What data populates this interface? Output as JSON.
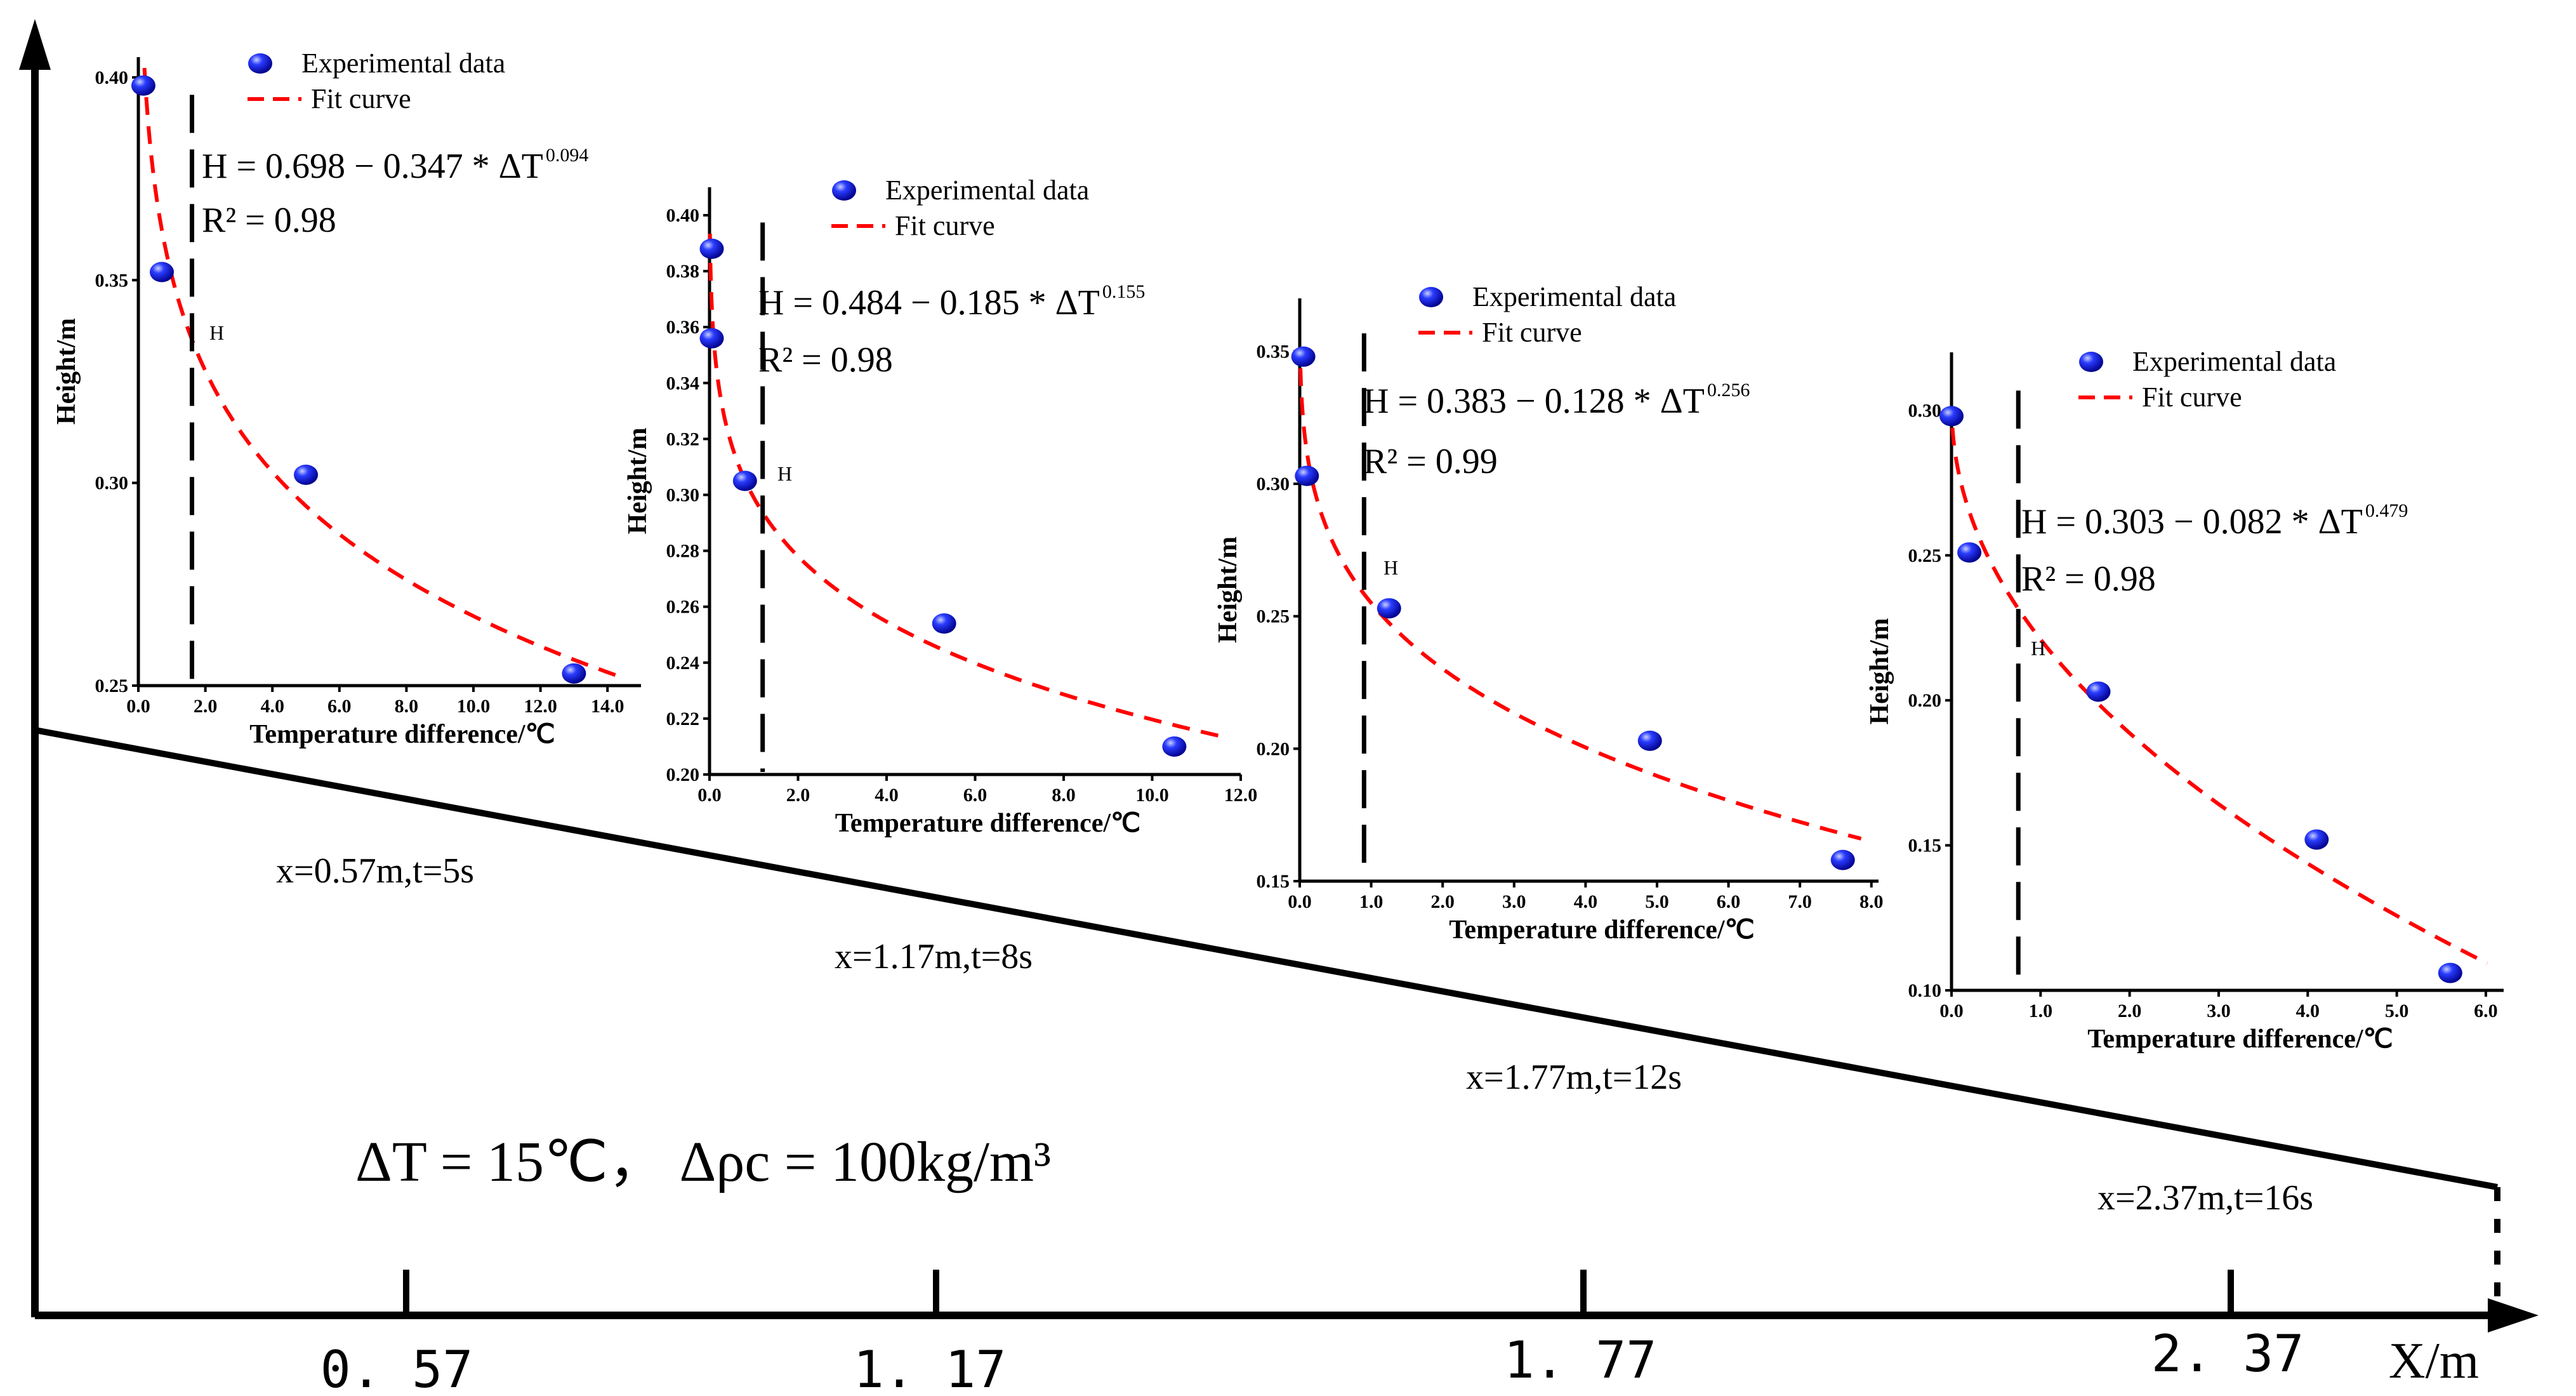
{
  "global_conditions": {
    "text": "ΔT = 15℃， Δρc = 100kg/m³"
  },
  "main_axis": {
    "label": "X/m",
    "ticks": [
      "0. 57",
      "1. 17",
      "1. 77",
      "2. 37"
    ]
  },
  "positions": [
    "x=0.57m,t=5s",
    "x=1.17m,t=8s",
    "x=1.77m,t=12s",
    "x=2.37m,t=16s"
  ],
  "legend": {
    "experimental": "Experimental data",
    "fit": "Fit curve"
  },
  "colors": {
    "point": "#1a1aff",
    "fit": "#ff0000",
    "axis": "#000000"
  },
  "chart_data": [
    {
      "type": "scatter",
      "title": "x=0.57m,t=5s",
      "xlabel": "Temperature difference/℃",
      "ylabel": "Height/m",
      "xlim": [
        0,
        15
      ],
      "ylim": [
        0.25,
        0.405
      ],
      "xticks": [
        "0.0",
        "2.0",
        "4.0",
        "6.0",
        "8.0",
        "10.0",
        "12.0",
        "14.0"
      ],
      "yticks": [
        "0.25",
        "0.30",
        "0.35",
        "0.40"
      ],
      "x": [
        0.15,
        0.7,
        5.0,
        13.0
      ],
      "y": [
        0.398,
        0.352,
        0.302,
        0.253
      ],
      "fit": {
        "a": 0.698,
        "b": 0.347,
        "c": 0.094
      },
      "equation": "H = 0.698 − 0.347 * ΔT",
      "exponent": "0.094",
      "r2": "R² = 0.98",
      "marker_label": "H",
      "marker_x": 1.6
    },
    {
      "type": "scatter",
      "title": "x=1.17m,t=8s",
      "xlabel": "Temperature difference/℃",
      "ylabel": "Height/m",
      "xlim": [
        0,
        12
      ],
      "ylim": [
        0.2,
        0.41
      ],
      "xticks": [
        "0.0",
        "2.0",
        "4.0",
        "6.0",
        "8.0",
        "10.0",
        "12.0"
      ],
      "yticks": [
        "0.20",
        "0.22",
        "0.24",
        "0.26",
        "0.28",
        "0.30",
        "0.32",
        "0.34",
        "0.36",
        "0.38",
        "0.40"
      ],
      "x": [
        0.05,
        0.05,
        0.8,
        5.3,
        10.5
      ],
      "y": [
        0.388,
        0.356,
        0.305,
        0.254,
        0.21
      ],
      "fit": {
        "a": 0.484,
        "b": 0.185,
        "c": 0.155
      },
      "equation": "H = 0.484 − 0.185 * ΔT",
      "exponent": "0.155",
      "r2": "R² = 0.98",
      "marker_label": "H",
      "marker_x": 1.2
    },
    {
      "type": "scatter",
      "title": "x=1.77m,t=12s",
      "xlabel": "Temperature difference/℃",
      "ylabel": "Height/m",
      "xlim": [
        0,
        8.1
      ],
      "ylim": [
        0.15,
        0.37
      ],
      "xticks": [
        "0.0",
        "1.0",
        "2.0",
        "3.0",
        "4.0",
        "5.0",
        "6.0",
        "7.0",
        "8.0"
      ],
      "yticks": [
        "0.15",
        "0.20",
        "0.25",
        "0.30",
        "0.35"
      ],
      "x": [
        0.05,
        0.1,
        1.25,
        4.9,
        7.6
      ],
      "y": [
        0.348,
        0.303,
        0.253,
        0.203,
        0.158
      ],
      "fit": {
        "a": 0.383,
        "b": 0.128,
        "c": 0.256
      },
      "equation": "H = 0.383 − 0.128 * ΔT",
      "exponent": "0.256",
      "r2": "R² = 0.99",
      "marker_label": "H",
      "marker_x": 0.9
    },
    {
      "type": "scatter",
      "title": "x=2.37m,t=16s",
      "xlabel": "Temperature difference/℃",
      "ylabel": "Height/m",
      "xlim": [
        0,
        6.2
      ],
      "ylim": [
        0.1,
        0.32
      ],
      "xticks": [
        "0.0",
        "1.0",
        "2.0",
        "3.0",
        "4.0",
        "5.0",
        "6.0"
      ],
      "yticks": [
        "0.10",
        "0.15",
        "0.20",
        "0.25",
        "0.30"
      ],
      "x": [
        0.0,
        0.2,
        1.65,
        4.1,
        5.6
      ],
      "y": [
        0.298,
        0.251,
        0.203,
        0.152,
        0.106
      ],
      "fit": {
        "a": 0.303,
        "b": 0.082,
        "c": 0.479
      },
      "equation": "H = 0.303 − 0.082 * ΔT",
      "exponent": "0.479",
      "r2": "R² = 0.98",
      "marker_label": "H",
      "marker_x": 0.75
    }
  ]
}
